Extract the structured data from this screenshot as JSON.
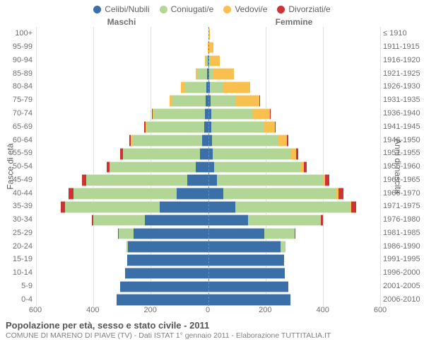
{
  "type": "population_pyramid",
  "legend": [
    {
      "label": "Celibi/Nubili",
      "color": "#3a6fa8"
    },
    {
      "label": "Coniugati/e",
      "color": "#b2d696"
    },
    {
      "label": "Vedovi/e",
      "color": "#f9c050"
    },
    {
      "label": "Divorziati/e",
      "color": "#cc3333"
    }
  ],
  "headers": {
    "male": "Maschi",
    "female": "Femmine"
  },
  "axis_left_title": "Fasce di età",
  "axis_right_title": "Anni di nascita",
  "x_axis": {
    "max": 600,
    "ticks_left": [
      600,
      400,
      200,
      0
    ],
    "ticks_right": [
      0,
      200,
      400,
      600
    ],
    "tick_labels": [
      "600",
      "400",
      "200",
      "0",
      "200",
      "400",
      "600"
    ],
    "grid_color": "#e0e0e0",
    "center_line_color": "#888888"
  },
  "age_labels": [
    "100+",
    "95-99",
    "90-94",
    "85-89",
    "80-84",
    "75-79",
    "70-74",
    "65-69",
    "60-64",
    "55-59",
    "50-54",
    "45-49",
    "40-44",
    "35-39",
    "30-34",
    "25-29",
    "20-24",
    "15-19",
    "10-14",
    "5-9",
    "0-4"
  ],
  "birth_labels": [
    "≤ 1910",
    "1911-1915",
    "1916-1920",
    "1921-1925",
    "1926-1930",
    "1931-1935",
    "1936-1940",
    "1941-1945",
    "1946-1950",
    "1951-1955",
    "1956-1960",
    "1961-1965",
    "1966-1970",
    "1971-1975",
    "1976-1980",
    "1981-1985",
    "1986-1990",
    "1991-1995",
    "1996-2000",
    "2001-2005",
    "2006-2010"
  ],
  "rows": [
    {
      "m": {
        "single": 0,
        "married": 0,
        "widowed": 0,
        "divorced": 0
      },
      "f": {
        "single": 0,
        "married": 0,
        "widowed": 6,
        "divorced": 0
      }
    },
    {
      "m": {
        "single": 0,
        "married": 0,
        "widowed": 2,
        "divorced": 0
      },
      "f": {
        "single": 0,
        "married": 0,
        "widowed": 18,
        "divorced": 0
      }
    },
    {
      "m": {
        "single": 2,
        "married": 6,
        "widowed": 4,
        "divorced": 0
      },
      "f": {
        "single": 2,
        "married": 4,
        "widowed": 34,
        "divorced": 0
      }
    },
    {
      "m": {
        "single": 4,
        "married": 32,
        "widowed": 8,
        "divorced": 0
      },
      "f": {
        "single": 4,
        "married": 14,
        "widowed": 72,
        "divorced": 0
      }
    },
    {
      "m": {
        "single": 6,
        "married": 76,
        "widowed": 12,
        "divorced": 0
      },
      "f": {
        "single": 6,
        "married": 44,
        "widowed": 96,
        "divorced": 0
      }
    },
    {
      "m": {
        "single": 8,
        "married": 118,
        "widowed": 8,
        "divorced": 0
      },
      "f": {
        "single": 8,
        "married": 88,
        "widowed": 82,
        "divorced": 2
      }
    },
    {
      "m": {
        "single": 10,
        "married": 178,
        "widowed": 6,
        "divorced": 2
      },
      "f": {
        "single": 10,
        "married": 146,
        "widowed": 60,
        "divorced": 2
      }
    },
    {
      "m": {
        "single": 14,
        "married": 200,
        "widowed": 4,
        "divorced": 4
      },
      "f": {
        "single": 12,
        "married": 182,
        "widowed": 38,
        "divorced": 4
      }
    },
    {
      "m": {
        "single": 20,
        "married": 246,
        "widowed": 4,
        "divorced": 6
      },
      "f": {
        "single": 14,
        "married": 232,
        "widowed": 28,
        "divorced": 6
      }
    },
    {
      "m": {
        "single": 28,
        "married": 268,
        "widowed": 2,
        "divorced": 8
      },
      "f": {
        "single": 16,
        "married": 272,
        "widowed": 18,
        "divorced": 8
      }
    },
    {
      "m": {
        "single": 44,
        "married": 298,
        "widowed": 2,
        "divorced": 10
      },
      "f": {
        "single": 20,
        "married": 302,
        "widowed": 12,
        "divorced": 10
      }
    },
    {
      "m": {
        "single": 72,
        "married": 352,
        "widowed": 2,
        "divorced": 14
      },
      "f": {
        "single": 32,
        "married": 368,
        "widowed": 8,
        "divorced": 14
      }
    },
    {
      "m": {
        "single": 110,
        "married": 360,
        "widowed": 0,
        "divorced": 16
      },
      "f": {
        "single": 54,
        "married": 394,
        "widowed": 6,
        "divorced": 18
      }
    },
    {
      "m": {
        "single": 170,
        "married": 330,
        "widowed": 0,
        "divorced": 14
      },
      "f": {
        "single": 96,
        "married": 400,
        "widowed": 4,
        "divorced": 16
      }
    },
    {
      "m": {
        "single": 220,
        "married": 180,
        "widowed": 0,
        "divorced": 6
      },
      "f": {
        "single": 140,
        "married": 250,
        "widowed": 2,
        "divorced": 8
      }
    },
    {
      "m": {
        "single": 260,
        "married": 52,
        "widowed": 0,
        "divorced": 2
      },
      "f": {
        "single": 196,
        "married": 106,
        "widowed": 0,
        "divorced": 2
      }
    },
    {
      "m": {
        "single": 280,
        "married": 4,
        "widowed": 0,
        "divorced": 0
      },
      "f": {
        "single": 252,
        "married": 18,
        "widowed": 0,
        "divorced": 0
      }
    },
    {
      "m": {
        "single": 282,
        "married": 0,
        "widowed": 0,
        "divorced": 0
      },
      "f": {
        "single": 266,
        "married": 0,
        "widowed": 0,
        "divorced": 0
      }
    },
    {
      "m": {
        "single": 290,
        "married": 0,
        "widowed": 0,
        "divorced": 0
      },
      "f": {
        "single": 268,
        "married": 0,
        "widowed": 0,
        "divorced": 0
      }
    },
    {
      "m": {
        "single": 306,
        "married": 0,
        "widowed": 0,
        "divorced": 0
      },
      "f": {
        "single": 280,
        "married": 0,
        "widowed": 0,
        "divorced": 0
      }
    },
    {
      "m": {
        "single": 318,
        "married": 0,
        "widowed": 0,
        "divorced": 0
      },
      "f": {
        "single": 288,
        "married": 0,
        "widowed": 0,
        "divorced": 0
      }
    }
  ],
  "footer": {
    "title": "Popolazione per età, sesso e stato civile - 2011",
    "subtitle": "COMUNE DI MARENO DI PIAVE (TV) - Dati ISTAT 1° gennaio 2011 - Elaborazione TUTTITALIA.IT"
  },
  "background_color": "#ffffff"
}
